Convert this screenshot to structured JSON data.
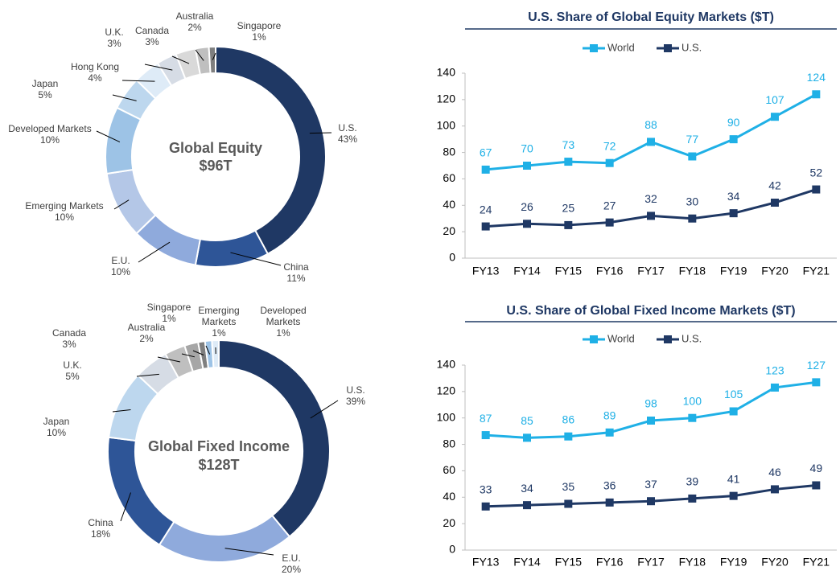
{
  "chart_data": [
    {
      "type": "donut",
      "center_label": [
        "Global Equity",
        "$96T"
      ],
      "categories": [
        "U.S.",
        "China",
        "E.U.",
        "Emerging Markets",
        "Developed Markets",
        "Japan",
        "Hong Kong",
        "U.K.",
        "Canada",
        "Australia",
        "Singapore"
      ],
      "values": [
        43,
        11,
        10,
        10,
        10,
        5,
        4,
        3,
        3,
        2,
        1
      ],
      "value_labels": [
        "43%",
        "11%",
        "10%",
        "10%",
        "10%",
        "5%",
        "4%",
        "3%",
        "3%",
        "2%",
        "1%"
      ],
      "colors": [
        "#1f3864",
        "#2e5597",
        "#8faadc",
        "#b4c7e7",
        "#9dc3e6",
        "#bdd7ee",
        "#deebf7",
        "#d6dce5",
        "#d9d9d9",
        "#bfbfbf",
        "#7f7f7f"
      ]
    },
    {
      "type": "line",
      "title": "U.S. Share of Global Equity Markets ($T)",
      "categories": [
        "FY13",
        "FY14",
        "FY15",
        "FY16",
        "FY17",
        "FY18",
        "FY19",
        "FY20",
        "FY21"
      ],
      "series": [
        {
          "name": "World",
          "color": "#1fb0e6",
          "values": [
            67,
            70,
            73,
            72,
            88,
            77,
            90,
            107,
            124
          ]
        },
        {
          "name": "U.S.",
          "color": "#1f3864",
          "values": [
            24,
            26,
            25,
            27,
            32,
            30,
            34,
            42,
            52
          ]
        }
      ],
      "ylim": [
        0,
        140
      ],
      "yticks": [
        0,
        20,
        40,
        60,
        80,
        100,
        120,
        140
      ],
      "legend": "top"
    },
    {
      "type": "donut",
      "center_label": [
        "Global Fixed Income",
        "$128T"
      ],
      "categories": [
        "U.S.",
        "E.U.",
        "China",
        "Japan",
        "U.K.",
        "Canada",
        "Australia",
        "Singapore",
        "Emerging Markets",
        "Developed Markets"
      ],
      "values": [
        39,
        20,
        18,
        10,
        5,
        3,
        2,
        1,
        1,
        1
      ],
      "value_labels": [
        "39%",
        "20%",
        "18%",
        "10%",
        "5%",
        "3%",
        "2%",
        "1%",
        "1%",
        "1%"
      ],
      "colors": [
        "#1f3864",
        "#8faadc",
        "#2e5597",
        "#bdd7ee",
        "#d6dce5",
        "#bfbfbf",
        "#a6a6a6",
        "#7f7f7f",
        "#9dc3e6",
        "#deebf7"
      ]
    },
    {
      "type": "line",
      "title": "U.S. Share of Global Fixed Income Markets ($T)",
      "categories": [
        "FY13",
        "FY14",
        "FY15",
        "FY16",
        "FY17",
        "FY18",
        "FY19",
        "FY20",
        "FY21"
      ],
      "series": [
        {
          "name": "World",
          "color": "#1fb0e6",
          "values": [
            87,
            85,
            86,
            89,
            98,
            100,
            105,
            123,
            127
          ]
        },
        {
          "name": "U.S.",
          "color": "#1f3864",
          "values": [
            33,
            34,
            35,
            36,
            37,
            39,
            41,
            46,
            49
          ]
        }
      ],
      "ylim": [
        0,
        140
      ],
      "yticks": [
        0,
        20,
        40,
        60,
        80,
        100,
        120,
        140
      ],
      "legend": "top"
    }
  ]
}
